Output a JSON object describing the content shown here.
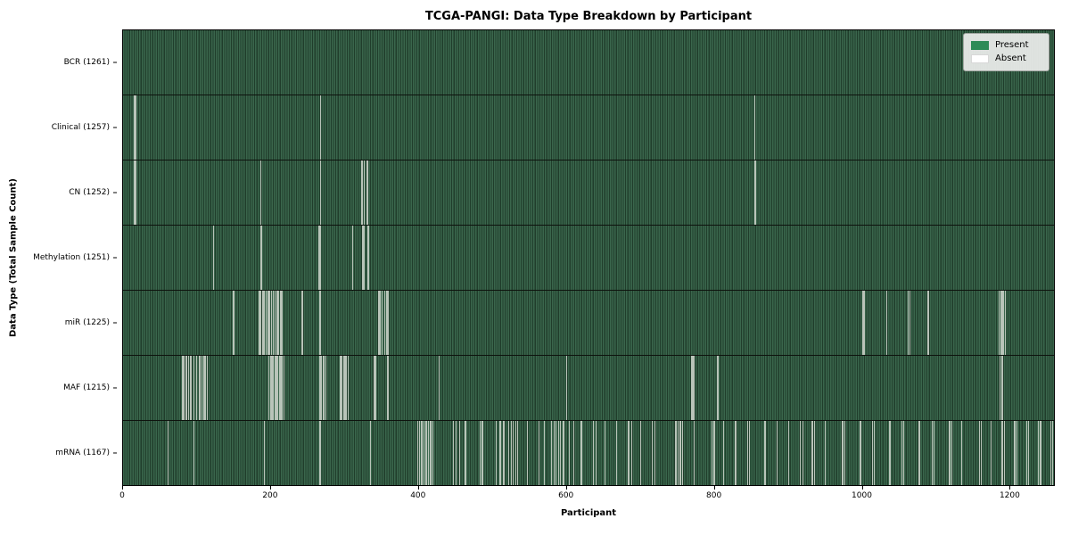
{
  "chart_data": {
    "type": "heatmap",
    "title": "TCGA-PANGI: Data Type Breakdown by Participant",
    "xlabel": "Participant",
    "ylabel": "Data Type (Total Sample Count)",
    "x_ticks": [
      0,
      200,
      400,
      600,
      800,
      1000,
      1200
    ],
    "x_range": [
      0,
      1261
    ],
    "total_participants": 1261,
    "grid": false,
    "legend": {
      "position": "upper-right",
      "present_label": "Present",
      "absent_label": "Absent",
      "present_color": "#2e8b57",
      "absent_color": "#ffffff"
    },
    "rows": [
      {
        "label": "BCR (1261)",
        "data_type": "BCR",
        "sample_count": 1261,
        "absent_count": 0,
        "absent_participants": []
      },
      {
        "label": "Clinical (1257)",
        "data_type": "Clinical",
        "sample_count": 1257,
        "absent_count": 4,
        "absent_participants": [
          15,
          16,
          267,
          855
        ]
      },
      {
        "label": "CN (1252)",
        "data_type": "CN",
        "sample_count": 1252,
        "absent_count": 9,
        "absent_participants": [
          15,
          16,
          186,
          267,
          323,
          326,
          330,
          855,
          856
        ]
      },
      {
        "label": "Methylation (1251)",
        "data_type": "Methylation",
        "sample_count": 1251,
        "absent_count": 10,
        "absent_participants": [
          122,
          186,
          187,
          265,
          267,
          310,
          324,
          326,
          331,
          332
        ]
      },
      {
        "label": "miR (1225)",
        "data_type": "miR",
        "sample_count": 1225,
        "absent_count": 36,
        "absent_participants": [
          149,
          184,
          186,
          189,
          191,
          193,
          196,
          198,
          200,
          203,
          205,
          208,
          210,
          213,
          215,
          241,
          243,
          266,
          346,
          348,
          350,
          354,
          356,
          358,
          1001,
          1003,
          1034,
          1063,
          1065,
          1090,
          1186,
          1188,
          1190,
          1191,
          1192,
          1194
        ]
      },
      {
        "label": "MAF (1215)",
        "data_type": "MAF",
        "sample_count": 1215,
        "absent_count": 46,
        "absent_participants": [
          80,
          82,
          84,
          86,
          88,
          90,
          92,
          95,
          99,
          103,
          106,
          109,
          111,
          113,
          197,
          199,
          201,
          203,
          205,
          207,
          209,
          211,
          213,
          215,
          217,
          266,
          268,
          271,
          274,
          294,
          296,
          298,
          300,
          302,
          304,
          340,
          342,
          358,
          427,
          600,
          769,
          771,
          773,
          805,
          1187,
          1190
        ]
      },
      {
        "label": "mRNA (1167)",
        "data_type": "mRNA",
        "sample_count": 1167,
        "absent_count": 94,
        "absent_participants": [
          60,
          95,
          191,
          266,
          334,
          398,
          401,
          404,
          407,
          410,
          413,
          416,
          419,
          447,
          450,
          455,
          463,
          483,
          486,
          505,
          510,
          515,
          522,
          525,
          528,
          531,
          534,
          547,
          563,
          570,
          580,
          583,
          586,
          589,
          592,
          596,
          604,
          610,
          620,
          636,
          640,
          652,
          668,
          684,
          688,
          700,
          716,
          720,
          748,
          751,
          754,
          757,
          773,
          797,
          800,
          813,
          829,
          845,
          848,
          869,
          885,
          901,
          917,
          920,
          933,
          936,
          950,
          974,
          977,
          998,
          1014,
          1017,
          1038,
          1054,
          1057,
          1078,
          1095,
          1098,
          1119,
          1122,
          1135,
          1159,
          1162,
          1175,
          1190,
          1193,
          1207,
          1210,
          1223,
          1226,
          1239,
          1242,
          1256,
          1258
        ]
      }
    ]
  },
  "colors": {
    "present_green": "#2e8b57",
    "stripe_light_green": "#3a664c",
    "stripe_dark_green": "#203d2b",
    "absent_line": "#b9c4b9",
    "row_separator": "#0d120d",
    "legend_background": "#e8eae8",
    "legend_border": "#a3a8a3",
    "text": "#000000",
    "figure_background": "#ffffff"
  }
}
